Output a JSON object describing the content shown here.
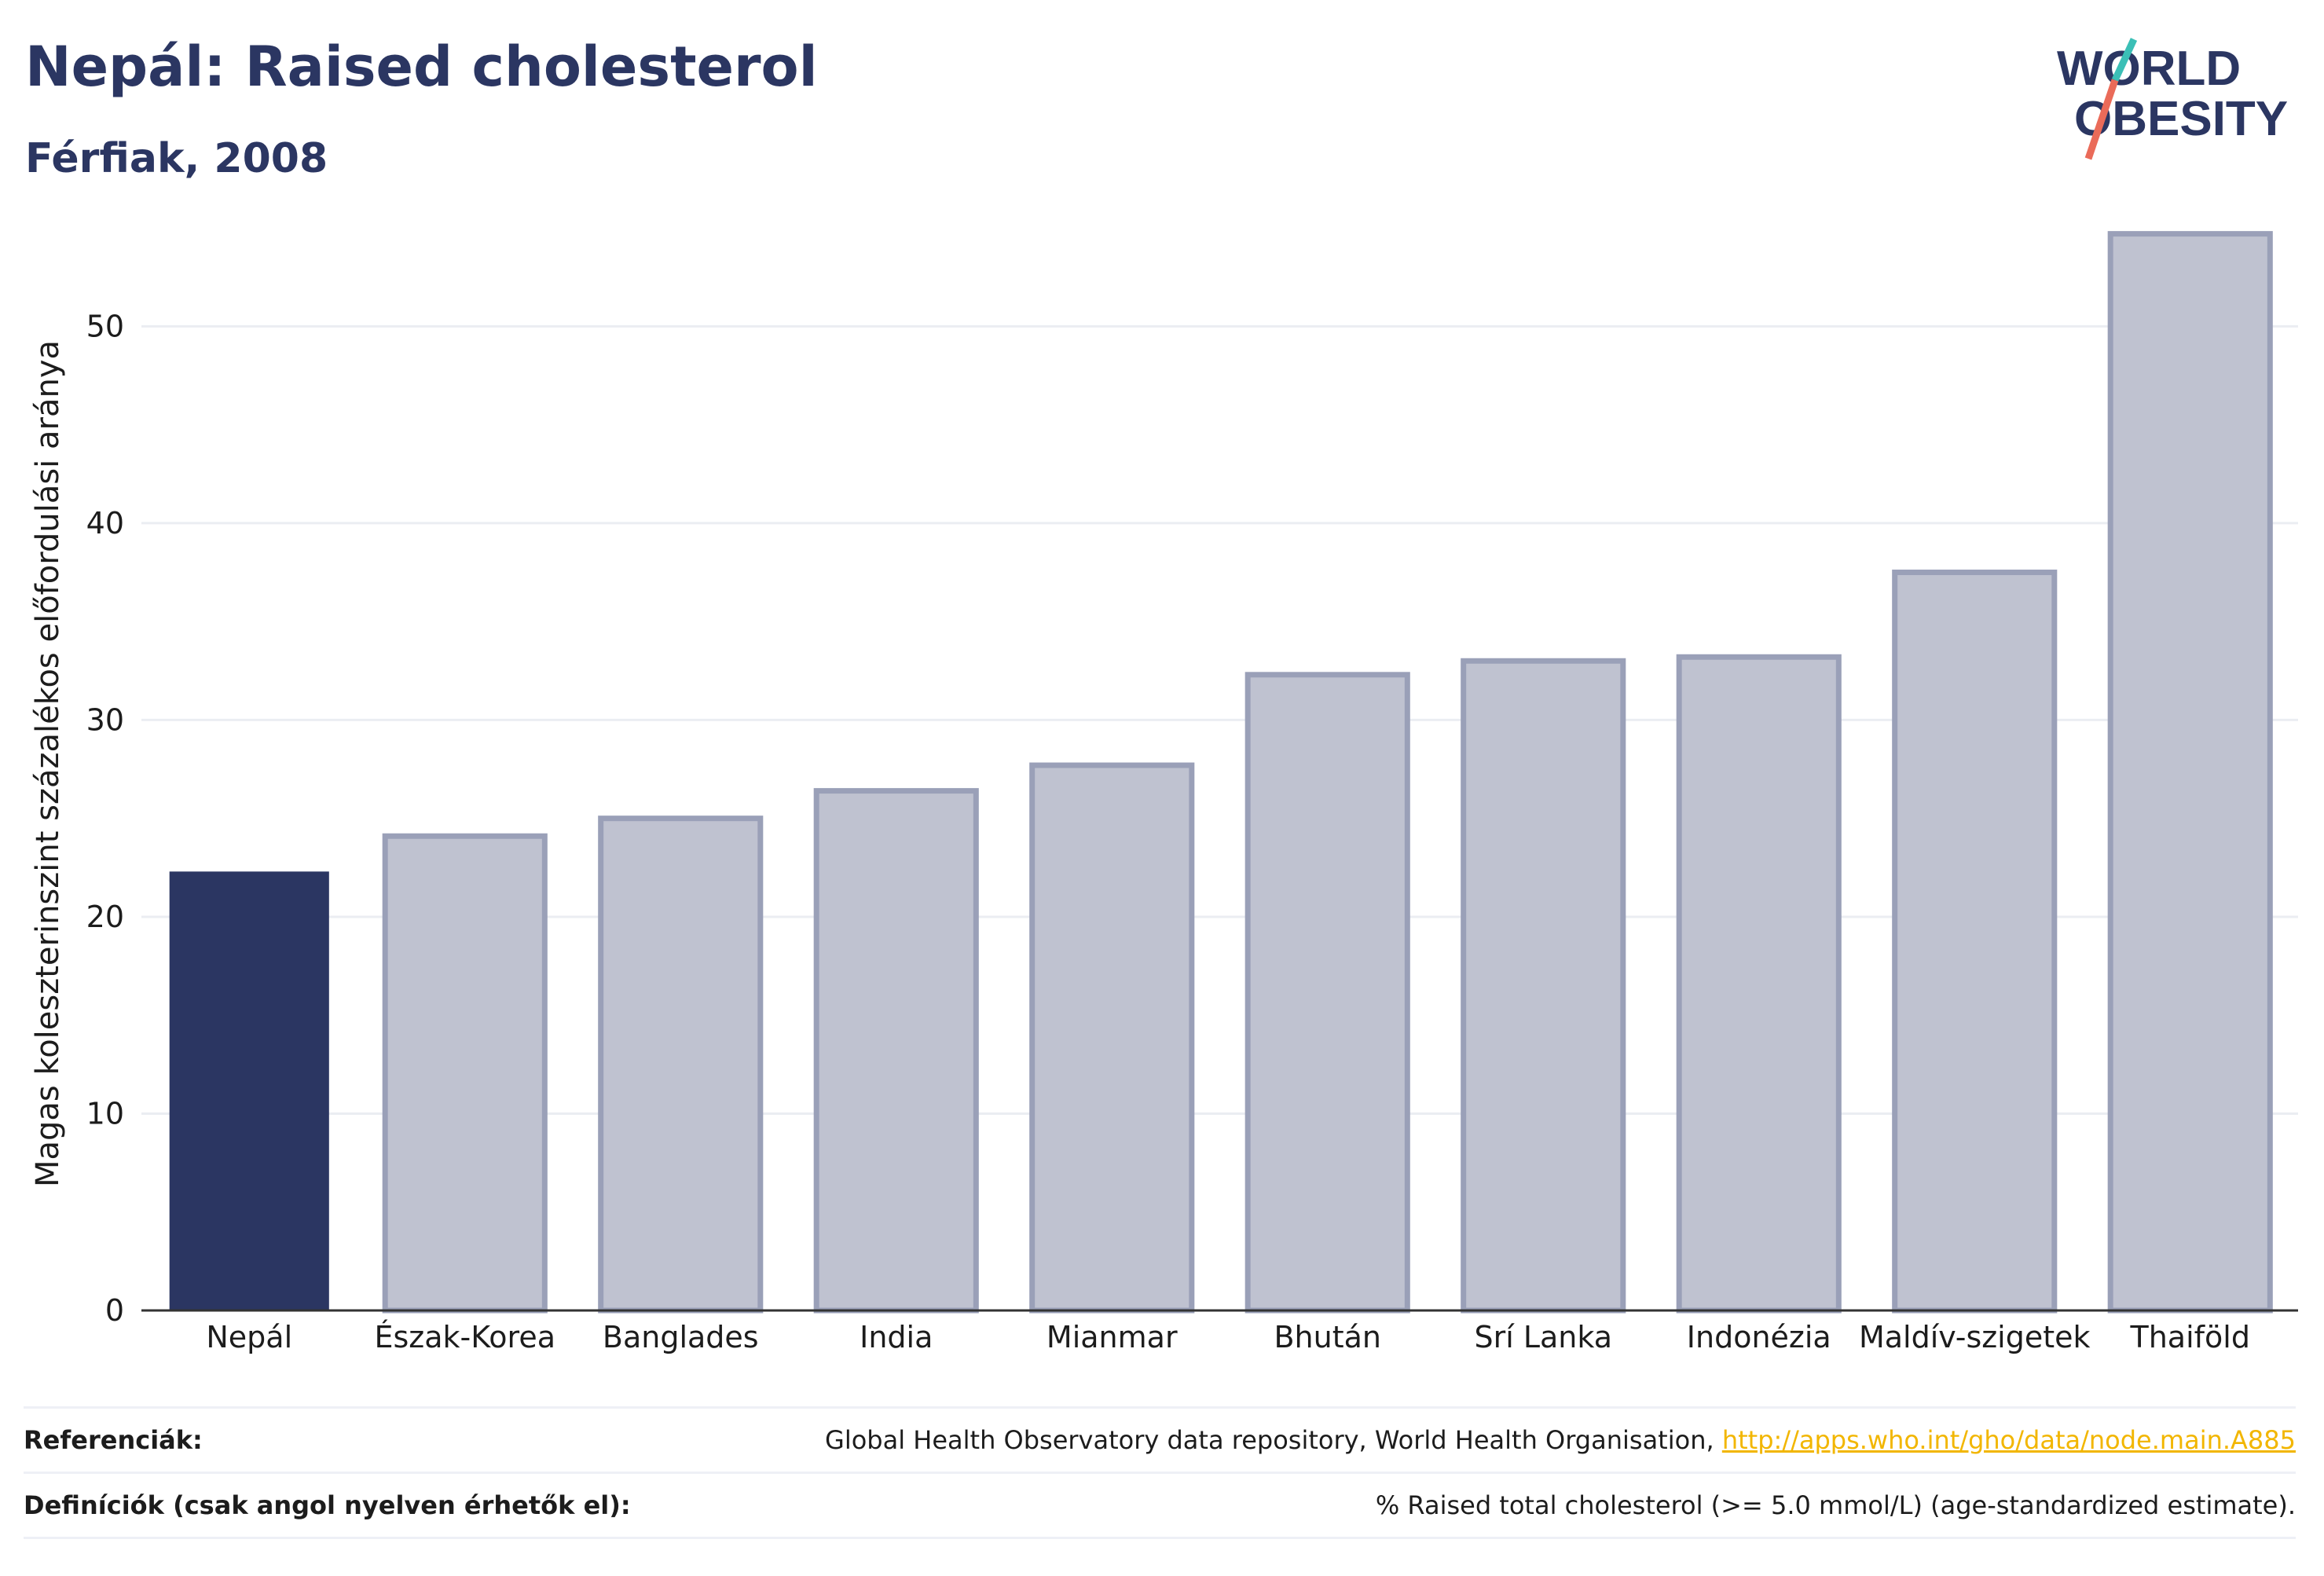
{
  "header": {
    "title": "Nepál: Raised cholesterol",
    "subtitle": "Férfiak, 2008"
  },
  "logo": {
    "line1": "WORLD",
    "line2": "OBESITY",
    "icon": "world-obesity-logo"
  },
  "chart_data": {
    "type": "bar",
    "categories": [
      "Nepál",
      "Észak-Korea",
      "Banglades",
      "India",
      "Mianmar",
      "Bhután",
      "Srí Lanka",
      "Indonézia",
      "Maldív-szigetek",
      "Thaiföld"
    ],
    "values": [
      22.3,
      24.1,
      25.0,
      26.4,
      27.7,
      32.3,
      33.0,
      33.2,
      37.5,
      54.7
    ],
    "highlight_index": 0,
    "ylabel": "Magas koleszterinszint százalékos előfordulási aránya",
    "xlabel": "",
    "ylim": [
      0,
      57
    ],
    "yticks": [
      0,
      10,
      20,
      30,
      40,
      50
    ],
    "grid": true,
    "colors": {
      "highlight": "#2b3662",
      "other_fill": "#bfc2d0",
      "other_stroke": "#9aa0b8",
      "grid": "#ebedf2",
      "axis": "#333333"
    }
  },
  "footer": {
    "references_label": "Referenciák:",
    "references_text": "Global Health Observatory data repository, World Health Organisation,",
    "references_link": "http://apps.who.int/gho/data/node.main.A885",
    "definitions_label": "Definíciók (csak angol nyelven érhetők el):",
    "definitions_text": "% Raised total cholesterol (>= 5.0 mmol/L) (age-standardized estimate)."
  }
}
